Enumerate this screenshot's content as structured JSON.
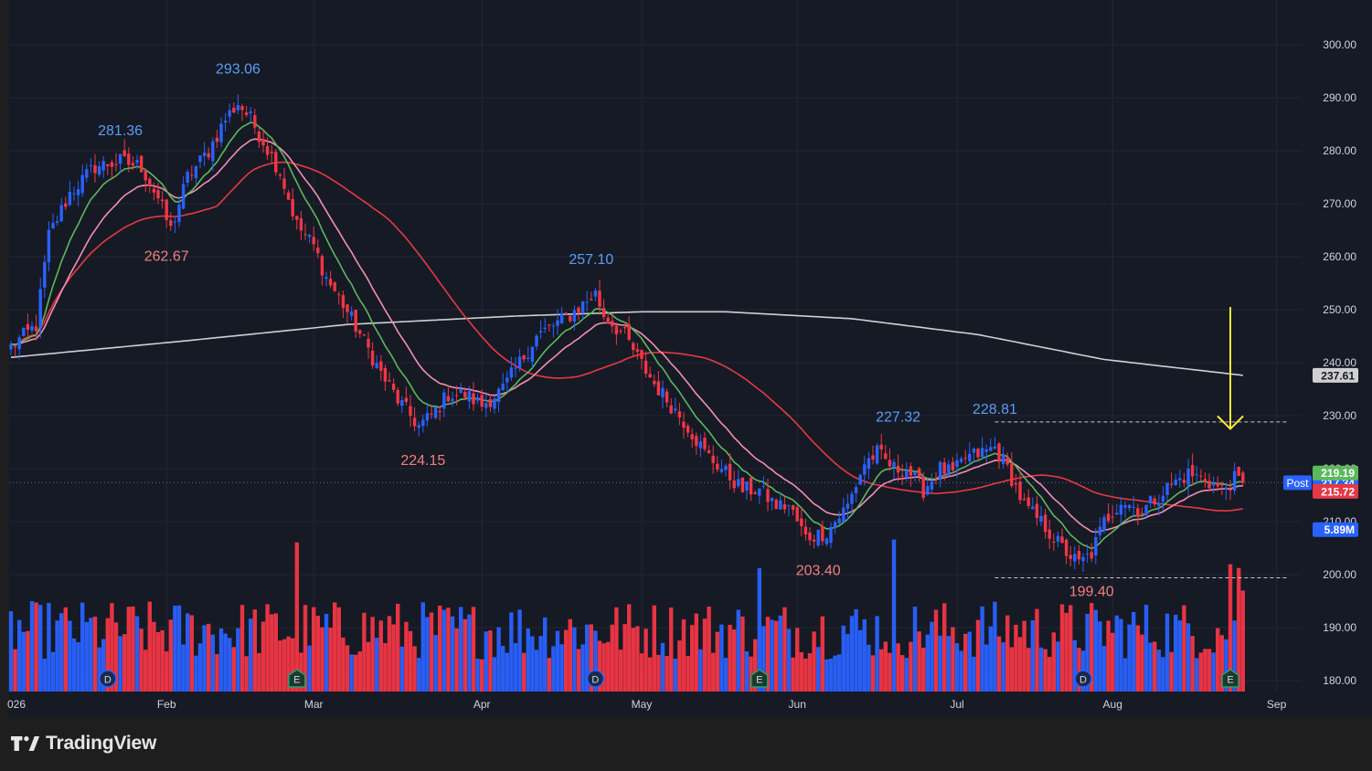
{
  "brand": {
    "name": "TradingView",
    "logo_icon": "tradingview-logo-icon"
  },
  "colors": {
    "background": "#161a25",
    "frame": "#1e1e1e",
    "grid": "#232735",
    "up": "#2962ff",
    "down": "#f23645",
    "vol_up": "#2962ff",
    "vol_down": "#f23645",
    "ema_fast": "#5cb85c",
    "ema_mid": "#f48fb1",
    "sma_50": "#e53945",
    "sma_200": "#d0d0d0",
    "annotation": "#ffeb3b",
    "label_high": "#5b9cf6",
    "label_low": "#f08080",
    "axis_text": "#d1d4dc"
  },
  "chart_data": {
    "type": "candlestick",
    "price_axis": {
      "ticks": [
        "300.00",
        "290.00",
        "280.00",
        "270.00",
        "260.00",
        "250.00",
        "240.00",
        "230.00",
        "220.00",
        "210.00",
        "200.00",
        "190.00",
        "180.00"
      ],
      "ylim": [
        178,
        303
      ]
    },
    "time_axis": {
      "labels": [
        "026",
        "Feb",
        "Mar",
        "Apr",
        "May",
        "Jun",
        "Jul",
        "Aug",
        "Sep"
      ]
    },
    "high_low_labels": [
      {
        "text": "293.06",
        "type": "high",
        "bar": 54
      },
      {
        "text": "281.36",
        "type": "high",
        "bar": 26
      },
      {
        "text": "262.67",
        "type": "low",
        "bar": 37
      },
      {
        "text": "224.15",
        "type": "low",
        "bar": 98
      },
      {
        "text": "257.10",
        "type": "high",
        "bar": 138
      },
      {
        "text": "203.40",
        "type": "low",
        "bar": 192
      },
      {
        "text": "227.32",
        "type": "high",
        "bar": 211
      },
      {
        "text": "228.81",
        "type": "high",
        "bar": 234
      },
      {
        "text": "199.40",
        "type": "low",
        "bar": 257
      }
    ],
    "price_labels": [
      {
        "text": "237.61",
        "role": "sma-200",
        "price": 237.61,
        "bg": "#d0d0d0",
        "fg": "#131722"
      },
      {
        "text": "217.34",
        "role": "last",
        "price": 217.34,
        "bg": "#2962ff",
        "fg": "#ffffff",
        "tag": "Post"
      },
      {
        "text": "219.19",
        "role": "ema-fast",
        "price": 219.19,
        "bg": "#5cb85c",
        "fg": "#ffffff"
      },
      {
        "text": "215.72",
        "role": "sma-50",
        "price": 215.72,
        "bg": "#e53945",
        "fg": "#ffffff"
      },
      {
        "text": "5.89M",
        "role": "volume",
        "price": 208.5,
        "bg": "#2962ff",
        "fg": "#ffffff"
      }
    ],
    "dashed_levels": [
      228.81,
      199.4
    ],
    "event_markers": [
      {
        "type": "D",
        "bar": 23
      },
      {
        "type": "E",
        "bar": 68
      },
      {
        "type": "D",
        "bar": 139
      },
      {
        "type": "E",
        "bar": 178
      },
      {
        "type": "D",
        "bar": 255
      },
      {
        "type": "E",
        "bar": 290
      }
    ],
    "anchors": [
      [
        0,
        243
      ],
      [
        6,
        247
      ],
      [
        9,
        264
      ],
      [
        14,
        272
      ],
      [
        20,
        277
      ],
      [
        26,
        278
      ],
      [
        31,
        277
      ],
      [
        35,
        271
      ],
      [
        38,
        265
      ],
      [
        42,
        275
      ],
      [
        47,
        280
      ],
      [
        51,
        286
      ],
      [
        54,
        289
      ],
      [
        57,
        286
      ],
      [
        62,
        279
      ],
      [
        64,
        276
      ],
      [
        68,
        266
      ],
      [
        72,
        262
      ],
      [
        75,
        256
      ],
      [
        79,
        251
      ],
      [
        84,
        244
      ],
      [
        88,
        238
      ],
      [
        92,
        233
      ],
      [
        97,
        228
      ],
      [
        100,
        230
      ],
      [
        104,
        234
      ],
      [
        108,
        234
      ],
      [
        112,
        232
      ],
      [
        117,
        235
      ],
      [
        121,
        240
      ],
      [
        125,
        245
      ],
      [
        129,
        247
      ],
      [
        133,
        249
      ],
      [
        136,
        251
      ],
      [
        139,
        253
      ],
      [
        141,
        249
      ],
      [
        146,
        245
      ],
      [
        149,
        241
      ],
      [
        153,
        236
      ],
      [
        157,
        232
      ],
      [
        161,
        228
      ],
      [
        165,
        223
      ],
      [
        169,
        220
      ],
      [
        174,
        216
      ],
      [
        178,
        216
      ],
      [
        182,
        213
      ],
      [
        185,
        213
      ],
      [
        189,
        207
      ],
      [
        194,
        208
      ],
      [
        199,
        213
      ],
      [
        203,
        221
      ],
      [
        206,
        223
      ],
      [
        210,
        220
      ],
      [
        213,
        220
      ],
      [
        217,
        216
      ],
      [
        221,
        220
      ],
      [
        224,
        219
      ],
      [
        227,
        222
      ],
      [
        231,
        223
      ],
      [
        234,
        224
      ],
      [
        237,
        220
      ],
      [
        241,
        213
      ],
      [
        246,
        209
      ],
      [
        250,
        205
      ],
      [
        254,
        202
      ],
      [
        257,
        204
      ],
      [
        260,
        210
      ],
      [
        264,
        214
      ],
      [
        269,
        212
      ],
      [
        273,
        215
      ],
      [
        276,
        217
      ],
      [
        280,
        219
      ],
      [
        284,
        218
      ],
      [
        288,
        216
      ],
      [
        291,
        218
      ],
      [
        293,
        217.34
      ]
    ],
    "bars_count": 294,
    "last_bar": 293,
    "ma_periods": {
      "ema_fast": 10,
      "ema_mid": 20,
      "sma_50": 50
    },
    "sma_200_points": [
      [
        0,
        241
      ],
      [
        40,
        244
      ],
      [
        80,
        247.2
      ],
      [
        120,
        248.8
      ],
      [
        150,
        249.6
      ],
      [
        170,
        249.6
      ],
      [
        200,
        248.3
      ],
      [
        230,
        245.3
      ],
      [
        260,
        240.6
      ],
      [
        293,
        237.61
      ]
    ],
    "volume_scale_max": 14.5,
    "arrow_annotation": {
      "bar": 290,
      "from_price": 250.5,
      "to_price": 227.5
    }
  }
}
